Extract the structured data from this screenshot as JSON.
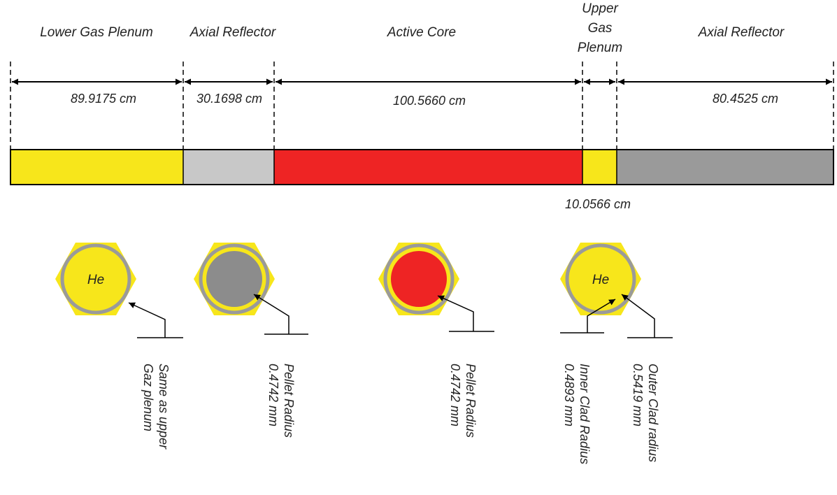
{
  "colors": {
    "gas": "#f7e61b",
    "reflector_light": "#c8c8c8",
    "reflector_dark": "#9a9a9a",
    "core": "#ee2424",
    "clad": "#9a9a9a",
    "pellet_reflector": "#8c8c8c",
    "line": "#000000"
  },
  "regions": {
    "lower_gas_plenum": "Lower Gas Plenum",
    "axial_reflector_1": "Axial Reflector",
    "active_core": "Active Core",
    "upper_gas_plenum_1": "Upper",
    "upper_gas_plenum_2": "Gas",
    "upper_gas_plenum_3": "Plenum",
    "axial_reflector_2": "Axial Reflector"
  },
  "dimensions": {
    "lower_gas_plenum": "89.9175 cm",
    "axial_reflector_1": "30.1698 cm",
    "active_core": "100.5660 cm",
    "upper_gas_plenum": "10.0566 cm",
    "axial_reflector_2": "80.4525 cm"
  },
  "cross_sections": {
    "he_label_1": "He",
    "he_label_2": "He",
    "note_1_line1": "Same as upper",
    "note_1_line2": "Gaz plenum",
    "note_2_line1": "Pellet Radius",
    "note_2_line2": "0.4742 mm",
    "note_3_line1": "Pellet Radius",
    "note_3_line2": "0.4742 mm",
    "note_4_line1": "Inner Clad Radius",
    "note_4_line2": "0.4893 mm",
    "note_5_line1": "Outer Clad radius",
    "note_5_line2": "0.5419 mm"
  }
}
